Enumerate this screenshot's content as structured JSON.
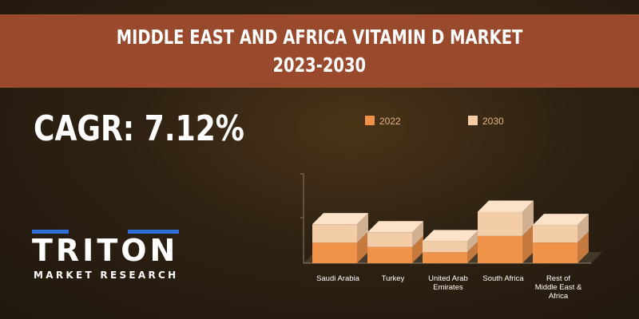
{
  "banner": {
    "line1": "MIDDLE EAST AND AFRICA VITAMIN D MARKET",
    "line2": "2023-2030"
  },
  "cagr": "CAGR: 7.12%",
  "logo": {
    "name": "TRITON",
    "subtitle": "MARKET RESEARCH"
  },
  "colors": {
    "banner": "#9a4a2c",
    "series_2022": "#f0934a",
    "series_2030": "#f2cda8",
    "logo_accent": "#2f6fd8"
  },
  "chart_data": {
    "type": "bar",
    "stacked": true,
    "three_d": true,
    "categories": [
      "Saudi Arabia",
      "Turkey",
      "United Arab Emirates",
      "South Africa",
      "Rest of Middle East & Africa"
    ],
    "category_labels": [
      [
        "Saudi Arabia"
      ],
      [
        "Turkey"
      ],
      [
        "United Arab",
        "Emirates"
      ],
      [
        "South Africa"
      ],
      [
        "Rest of",
        "Middle East &",
        "Africa"
      ]
    ],
    "series": [
      {
        "name": "2022",
        "values": [
          28,
          22,
          15,
          37,
          28
        ]
      },
      {
        "name": "2030",
        "values": [
          53,
          42,
          30,
          70,
          52
        ]
      }
    ],
    "legend_position": "top",
    "ylim": [
      0,
      115
    ]
  }
}
